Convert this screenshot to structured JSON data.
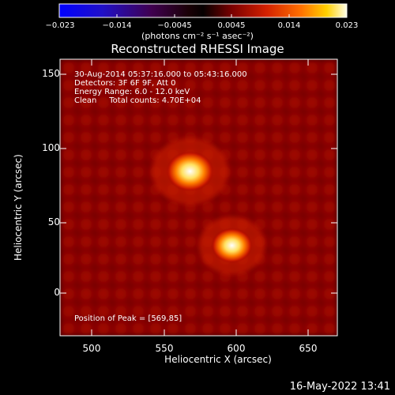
{
  "colorbar": {
    "ticks": [
      "−0.023",
      "−0.014",
      "−0.0045",
      "0.0045",
      "0.014",
      "0.023"
    ],
    "unit_label": "(photons cm⁻² s⁻¹ asec⁻²)"
  },
  "title": "Reconstructed RHESSI Image",
  "annotation": {
    "time_range": "30-Aug-2014 05:37:16.000 to 05:43:16.000",
    "detectors": "Detectors: 3F 6F 9F, Att 0",
    "energy": "Energy Range: 6.0 - 12.0 keV",
    "clean": "Clean     Total counts: 4.70E+04",
    "peak": "Position of Peak = [569,85]"
  },
  "axes": {
    "xlabel": "Heliocentric X (arcsec)",
    "ylabel": "Heliocentric Y (arcsec)",
    "xticks": [
      "500",
      "550",
      "600",
      "650"
    ],
    "yticks": [
      "150",
      "100",
      "50",
      "0"
    ],
    "xrange": [
      478,
      670
    ],
    "yrange": [
      -28,
      162
    ]
  },
  "sources": [
    {
      "x": 568,
      "y": 85,
      "peak": 0.023
    },
    {
      "x": 597,
      "y": 34,
      "peak": 0.02
    }
  ],
  "footer": "16-May-2022 13:41"
}
